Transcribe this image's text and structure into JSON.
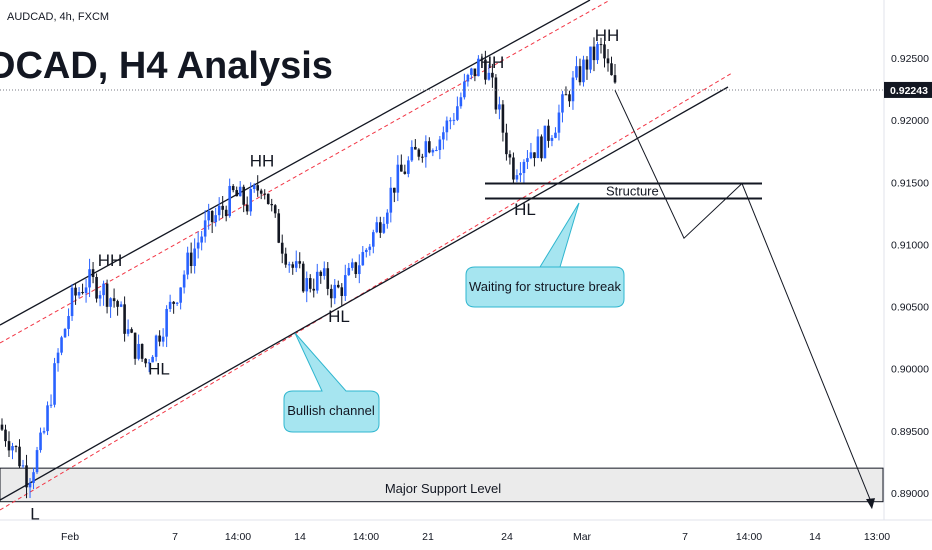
{
  "header": {
    "symbol": "AUDCAD, 4h, FXCM",
    "title": "DCAD, H4 Analysis"
  },
  "colors": {
    "bull": "#2962ff",
    "bear": "#131722",
    "channel": "#131722",
    "dashed": "#f23645",
    "callout_fill": "#a6e5f0",
    "callout_border": "#2fb6cf",
    "support_fill": "#ebebeb",
    "price_badge": "#131722"
  },
  "chart_data": {
    "type": "candlestick",
    "symbol": "AUDCAD",
    "timeframe": "4h",
    "ylim": [
      0.8887,
      0.9279
    ],
    "y_ticks": [
      "0.92500",
      "0.92000",
      "0.91500",
      "0.91000",
      "0.90500",
      "0.90000",
      "0.89500",
      "0.89000"
    ],
    "x_ticks": [
      "Feb",
      "7",
      "14:00",
      "14",
      "14:00",
      "21",
      "24",
      "Mar",
      "7",
      "14:00",
      "14",
      "13:00"
    ],
    "current_price": "0.92243",
    "close_path": [
      0.8955,
      0.8939,
      0.8912,
      0.8942,
      0.9008,
      0.9055,
      0.9071,
      0.9065,
      0.9054,
      0.9023,
      0.9004,
      0.9031,
      0.9057,
      0.9088,
      0.9112,
      0.9125,
      0.914,
      0.9132,
      0.9152,
      0.911,
      0.9082,
      0.9068,
      0.9073,
      0.9061,
      0.9075,
      0.9095,
      0.912,
      0.915,
      0.9166,
      0.9182,
      0.9185,
      0.9205,
      0.9232,
      0.925,
      0.921,
      0.916,
      0.9175,
      0.918,
      0.92,
      0.9226,
      0.9245,
      0.9258,
      0.9224
    ],
    "swing_labels": [
      {
        "text": "L",
        "price": 0.8893
      },
      {
        "text": "HH",
        "price": 0.9078
      },
      {
        "text": "HL",
        "price": 0.901
      },
      {
        "text": "HH",
        "price": 0.9158
      },
      {
        "text": "HL",
        "price": 0.9052
      },
      {
        "text": "HH",
        "price": 0.9237
      },
      {
        "text": "HL",
        "price": 0.9138
      },
      {
        "text": "HH",
        "price": 0.9259
      }
    ],
    "structure_zone": {
      "label": "Structure",
      "upper": 0.9149,
      "lower": 0.9137
    },
    "support_zone": {
      "label": "Major Support Level",
      "upper": 0.892,
      "lower": 0.8893
    },
    "projection": [
      0.9224,
      0.9105,
      0.9149,
      0.8891
    ],
    "annotations": [
      "Bullish channel",
      "Waiting for structure break"
    ]
  }
}
